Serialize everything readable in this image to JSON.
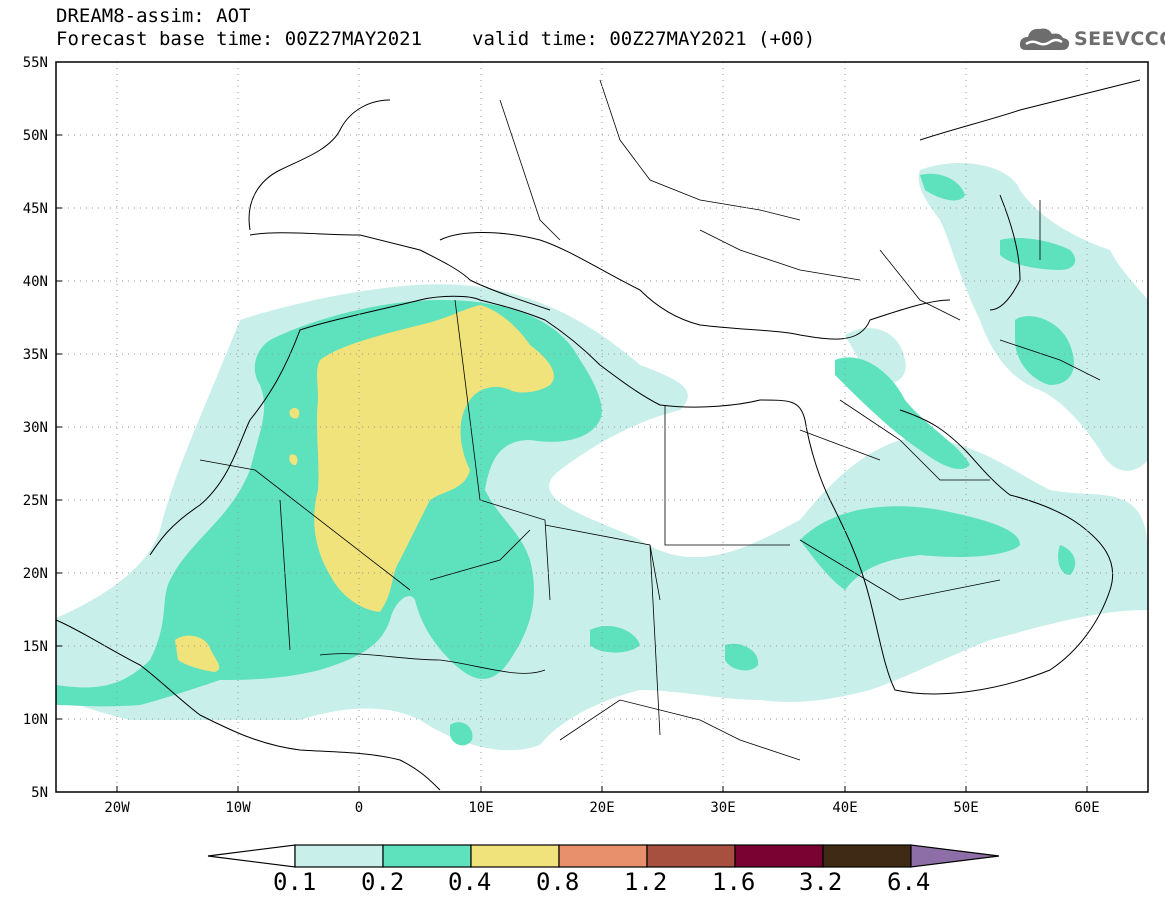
{
  "title": {
    "line1": "DREAM8-assim: AOT",
    "base_time": "Forecast base time: 00Z27MAY2021",
    "valid_time": "valid time: 00Z27MAY2021 (+00)"
  },
  "logo": {
    "text": "SEEVCCC",
    "icon": "cloud-logo-icon"
  },
  "map": {
    "lat_labels": [
      "55N",
      "50N",
      "45N",
      "40N",
      "35N",
      "30N",
      "25N",
      "20N",
      "15N",
      "10N",
      "5N"
    ],
    "lon_labels": [
      "20W",
      "10W",
      "0",
      "10E",
      "20E",
      "30E",
      "40E",
      "50E",
      "60E"
    ],
    "lat_range": [
      5,
      55
    ],
    "lon_range": [
      -25,
      65
    ],
    "gridlines": "dotted"
  },
  "colorbar": {
    "levels": [
      "0.1",
      "0.2",
      "0.4",
      "0.8",
      "1.2",
      "1.6",
      "3.2",
      "6.4"
    ],
    "colors": [
      "#ffffff",
      "#c8efe9",
      "#5ee1bd",
      "#f1e37b",
      "#e8906b",
      "#a8503f",
      "#7a0233",
      "#3f2a16",
      "#8e6ea7"
    ]
  },
  "legend": {
    "fill_colors": {
      "very_low": "#c8efe9",
      "low": "#5ee1bd",
      "mid": "#f1e37b"
    }
  }
}
